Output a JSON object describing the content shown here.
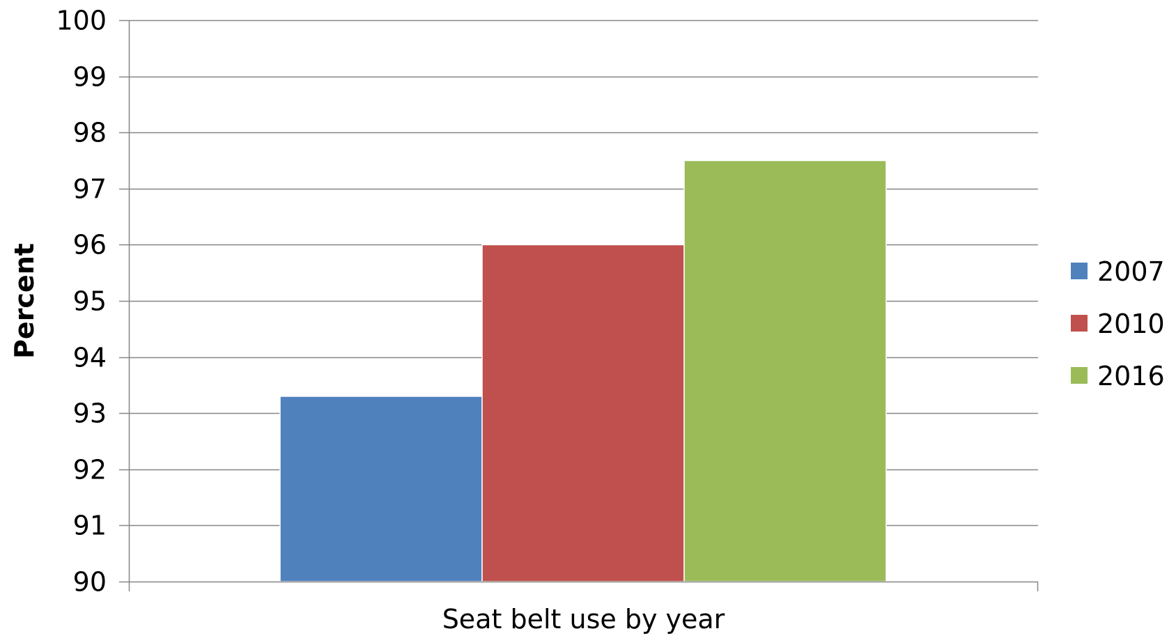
{
  "chart_data": {
    "type": "bar",
    "title": "",
    "xlabel": "Seat belt use by year",
    "ylabel": "Percent",
    "ylim": [
      90,
      100
    ],
    "yticks": [
      90,
      91,
      92,
      93,
      94,
      95,
      96,
      97,
      98,
      99,
      100
    ],
    "grid": true,
    "legend_position": "right",
    "categories": [
      "Seat belt use by year"
    ],
    "series": [
      {
        "name": "2007",
        "values": [
          93.3
        ],
        "color": "#4f81bd"
      },
      {
        "name": "2010",
        "values": [
          96.0
        ],
        "color": "#c0504d"
      },
      {
        "name": "2016",
        "values": [
          97.5
        ],
        "color": "#9bbb59"
      }
    ]
  }
}
